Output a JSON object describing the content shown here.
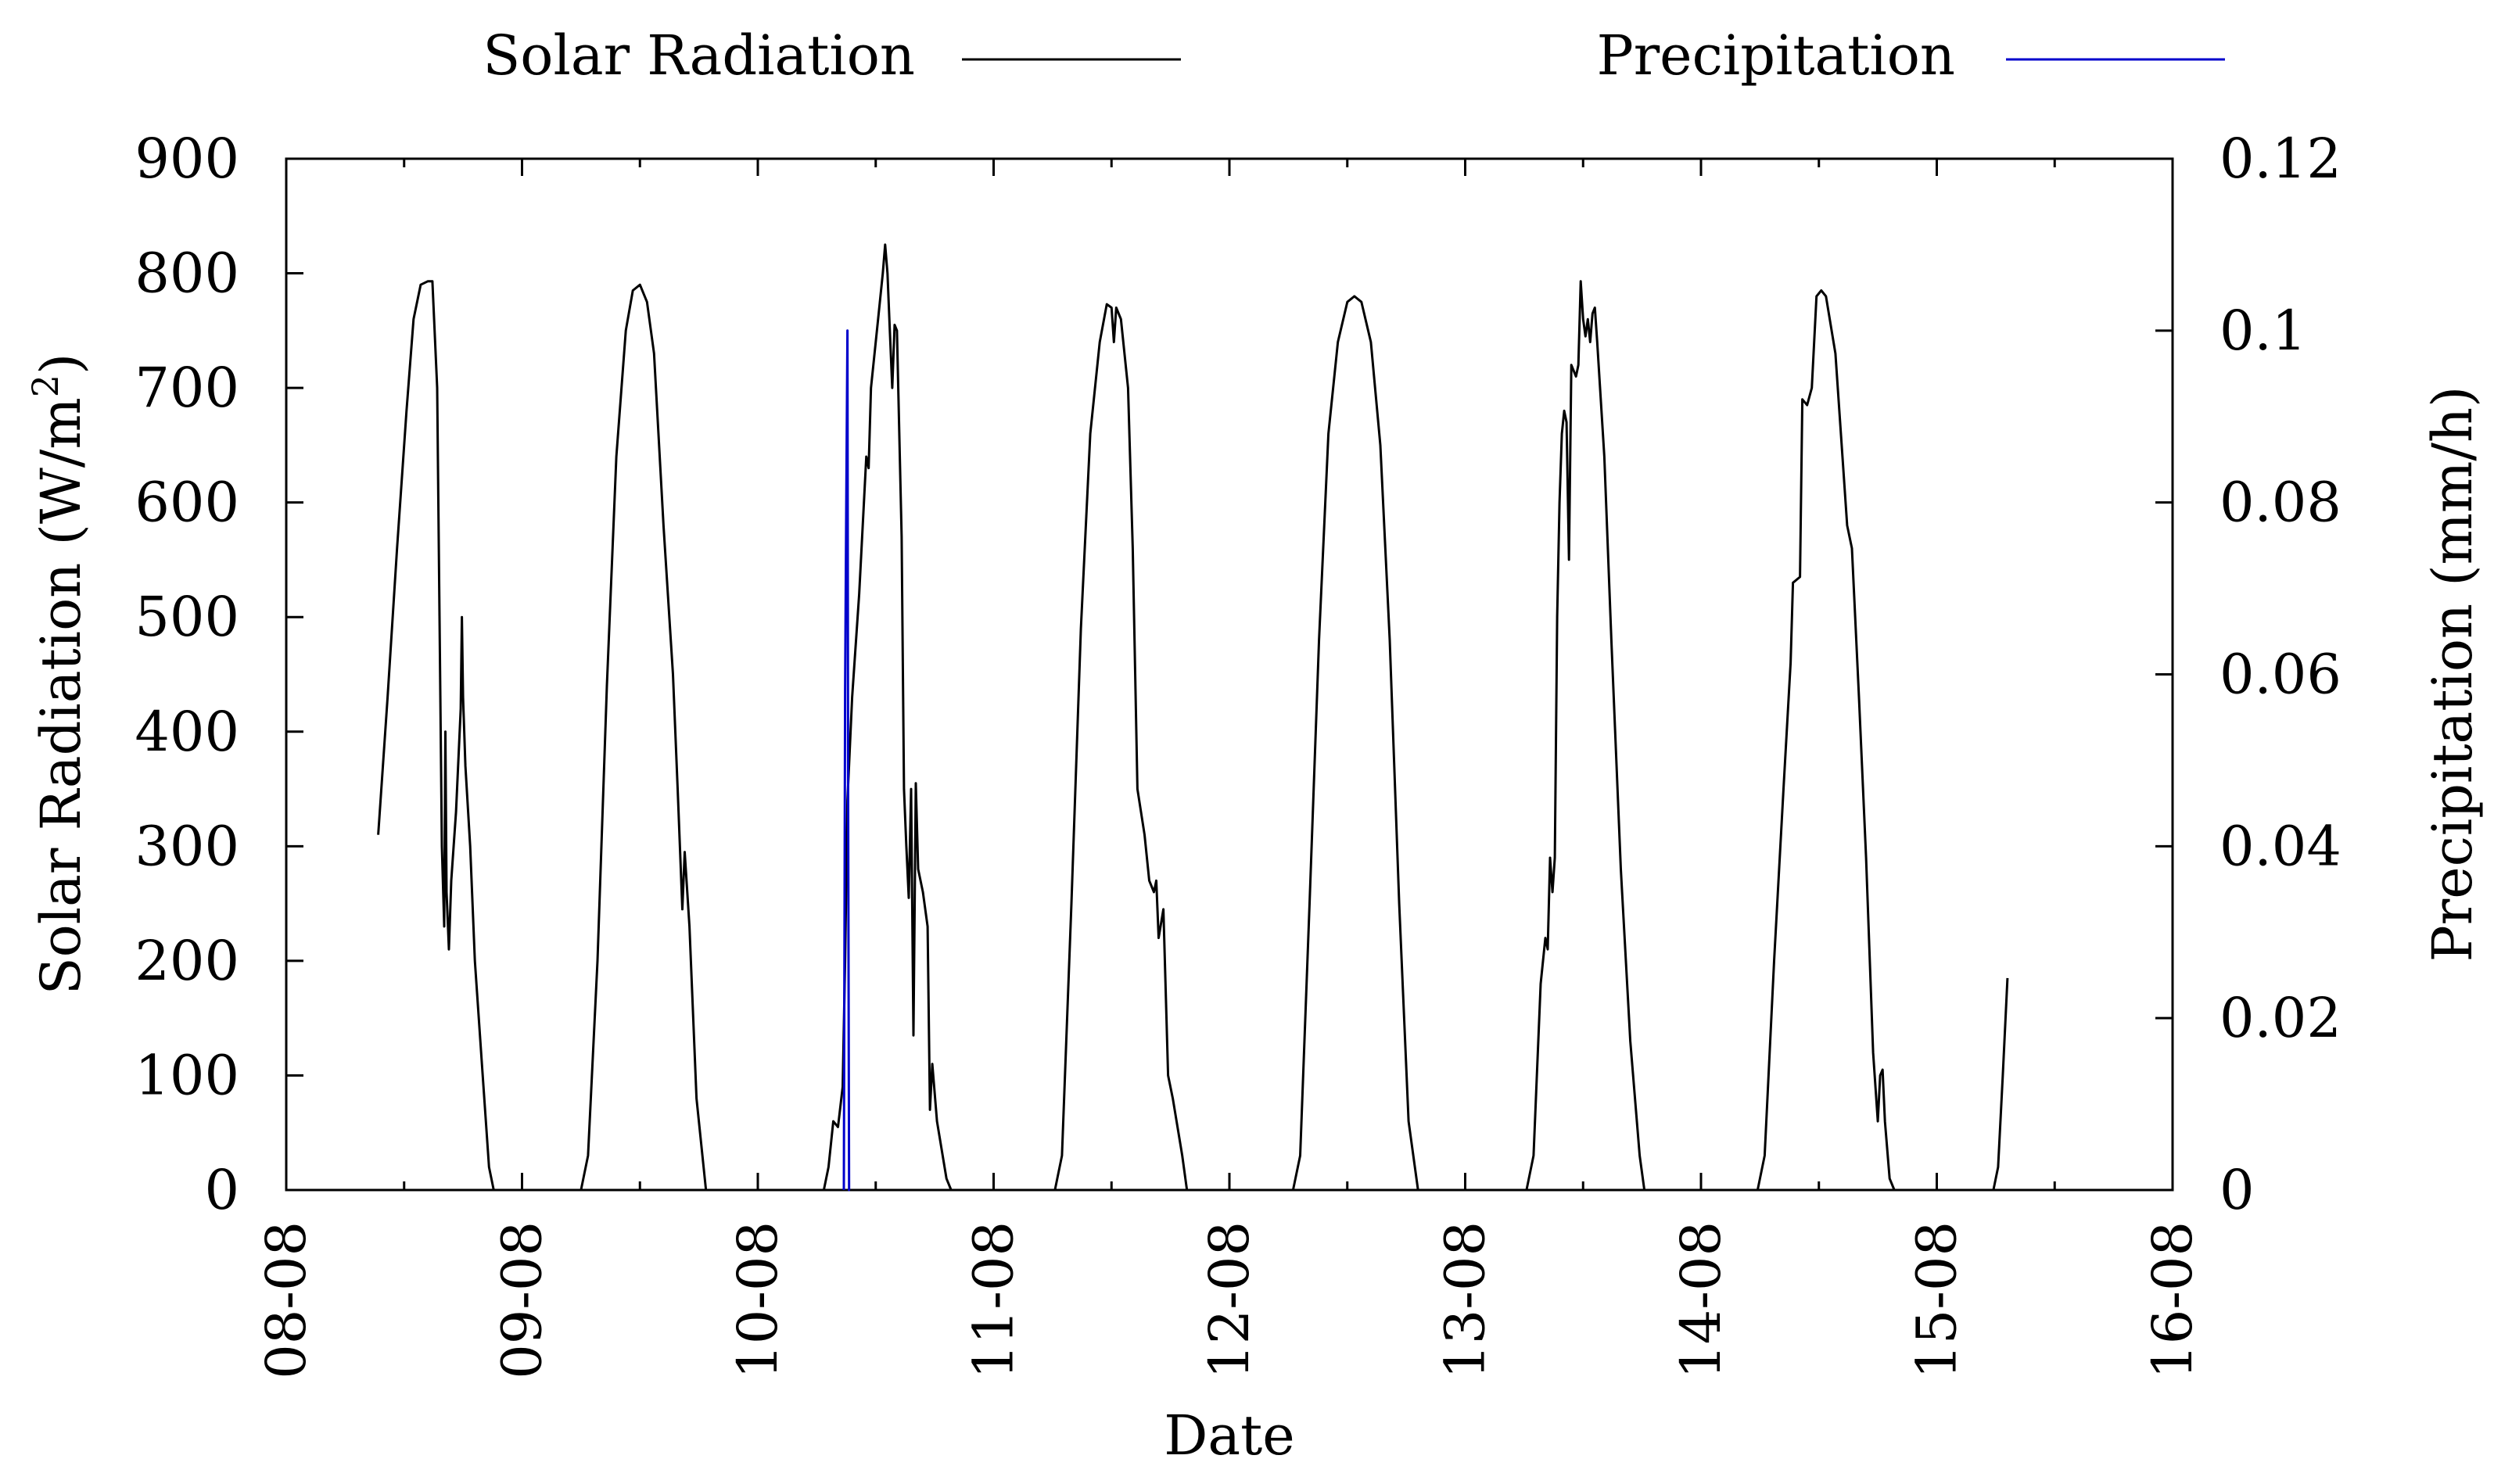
{
  "chart_data": {
    "type": "line",
    "xlabel": "Date",
    "ylabel_left": "Solar Radiation (W/m²)",
    "ylabel_left_main": "Solar Radiation (W/m",
    "ylabel_left_sup": "2",
    "ylabel_left_end": ")",
    "ylabel_right": "Precipitation (mm/h)",
    "x_range": [
      0,
      8
    ],
    "x_ticks": [
      0,
      1,
      2,
      3,
      4,
      5,
      6,
      7,
      8
    ],
    "x_tick_labels": [
      "08-08",
      "09-08",
      "10-08",
      "11-08",
      "12-08",
      "13-08",
      "14-08",
      "15-08",
      "16-08"
    ],
    "y_left_range": [
      0,
      900
    ],
    "y_left_ticks": [
      0,
      100,
      200,
      300,
      400,
      500,
      600,
      700,
      800,
      900
    ],
    "y_left_tick_labels": [
      "0",
      "100",
      "200",
      "300",
      "400",
      "500",
      "600",
      "700",
      "800",
      "900"
    ],
    "y_right_range": [
      0,
      0.12
    ],
    "y_right_ticks": [
      0,
      0.02,
      0.04,
      0.06,
      0.08,
      0.1,
      0.12
    ],
    "y_right_tick_labels": [
      "0",
      "0.02",
      "0.04",
      "0.06",
      "0.08",
      "0.1",
      "0.12"
    ],
    "grid": false,
    "legend_position": "top",
    "series": [
      {
        "name": "Solar Radiation",
        "axis": "left",
        "color": "#000000",
        "points": [
          [
            0.39,
            310
          ],
          [
            0.43,
            430
          ],
          [
            0.47,
            560
          ],
          [
            0.51,
            680
          ],
          [
            0.54,
            760
          ],
          [
            0.57,
            790
          ],
          [
            0.6,
            793
          ],
          [
            0.62,
            793
          ],
          [
            0.64,
            700
          ],
          [
            0.65,
            500
          ],
          [
            0.66,
            300
          ],
          [
            0.67,
            230
          ],
          [
            0.675,
            400
          ],
          [
            0.68,
            260
          ],
          [
            0.69,
            210
          ],
          [
            0.7,
            270
          ],
          [
            0.72,
            330
          ],
          [
            0.74,
            420
          ],
          [
            0.745,
            500
          ],
          [
            0.75,
            430
          ],
          [
            0.76,
            370
          ],
          [
            0.78,
            300
          ],
          [
            0.8,
            200
          ],
          [
            0.83,
            110
          ],
          [
            0.86,
            20
          ],
          [
            0.88,
            0
          ],
          [
            1.25,
            0
          ],
          [
            1.28,
            30
          ],
          [
            1.32,
            200
          ],
          [
            1.36,
            440
          ],
          [
            1.4,
            640
          ],
          [
            1.44,
            750
          ],
          [
            1.47,
            785
          ],
          [
            1.5,
            790
          ],
          [
            1.53,
            775
          ],
          [
            1.56,
            730
          ],
          [
            1.6,
            580
          ],
          [
            1.64,
            450
          ],
          [
            1.66,
            350
          ],
          [
            1.68,
            245
          ],
          [
            1.69,
            295
          ],
          [
            1.71,
            230
          ],
          [
            1.74,
            80
          ],
          [
            1.78,
            0
          ],
          [
            2.28,
            0
          ],
          [
            2.3,
            20
          ],
          [
            2.32,
            60
          ],
          [
            2.34,
            55
          ],
          [
            2.36,
            90
          ],
          [
            2.37,
            200
          ],
          [
            2.38,
            340
          ],
          [
            2.4,
            430
          ],
          [
            2.43,
            520
          ],
          [
            2.46,
            640
          ],
          [
            2.47,
            630
          ],
          [
            2.48,
            700
          ],
          [
            2.51,
            760
          ],
          [
            2.53,
            800
          ],
          [
            2.54,
            825
          ],
          [
            2.55,
            800
          ],
          [
            2.56,
            750
          ],
          [
            2.57,
            700
          ],
          [
            2.58,
            755
          ],
          [
            2.59,
            750
          ],
          [
            2.61,
            570
          ],
          [
            2.62,
            350
          ],
          [
            2.63,
            300
          ],
          [
            2.64,
            255
          ],
          [
            2.65,
            350
          ],
          [
            2.66,
            135
          ],
          [
            2.67,
            355
          ],
          [
            2.68,
            280
          ],
          [
            2.7,
            260
          ],
          [
            2.72,
            230
          ],
          [
            2.73,
            70
          ],
          [
            2.74,
            110
          ],
          [
            2.76,
            60
          ],
          [
            2.8,
            10
          ],
          [
            2.82,
            0
          ],
          [
            3.26,
            0
          ],
          [
            3.29,
            30
          ],
          [
            3.33,
            250
          ],
          [
            3.37,
            490
          ],
          [
            3.41,
            660
          ],
          [
            3.45,
            740
          ],
          [
            3.48,
            773
          ],
          [
            3.5,
            770
          ],
          [
            3.51,
            740
          ],
          [
            3.52,
            770
          ],
          [
            3.54,
            760
          ],
          [
            3.57,
            700
          ],
          [
            3.59,
            560
          ],
          [
            3.61,
            350
          ],
          [
            3.64,
            310
          ],
          [
            3.66,
            270
          ],
          [
            3.68,
            260
          ],
          [
            3.69,
            270
          ],
          [
            3.7,
            220
          ],
          [
            3.72,
            245
          ],
          [
            3.74,
            100
          ],
          [
            3.76,
            80
          ],
          [
            3.8,
            30
          ],
          [
            3.82,
            0
          ],
          [
            4.27,
            0
          ],
          [
            4.3,
            30
          ],
          [
            4.34,
            250
          ],
          [
            4.38,
            480
          ],
          [
            4.42,
            660
          ],
          [
            4.46,
            740
          ],
          [
            4.5,
            775
          ],
          [
            4.53,
            780
          ],
          [
            4.56,
            775
          ],
          [
            4.6,
            740
          ],
          [
            4.64,
            650
          ],
          [
            4.68,
            480
          ],
          [
            4.72,
            250
          ],
          [
            4.76,
            60
          ],
          [
            4.8,
            0
          ],
          [
            5.26,
            0
          ],
          [
            5.29,
            30
          ],
          [
            5.32,
            180
          ],
          [
            5.34,
            220
          ],
          [
            5.35,
            210
          ],
          [
            5.36,
            290
          ],
          [
            5.37,
            260
          ],
          [
            5.38,
            290
          ],
          [
            5.39,
            500
          ],
          [
            5.4,
            600
          ],
          [
            5.41,
            660
          ],
          [
            5.42,
            680
          ],
          [
            5.43,
            670
          ],
          [
            5.44,
            550
          ],
          [
            5.45,
            720
          ],
          [
            5.47,
            710
          ],
          [
            5.48,
            720
          ],
          [
            5.49,
            793
          ],
          [
            5.5,
            760
          ],
          [
            5.51,
            745
          ],
          [
            5.52,
            760
          ],
          [
            5.53,
            740
          ],
          [
            5.54,
            765
          ],
          [
            5.55,
            770
          ],
          [
            5.56,
            740
          ],
          [
            5.59,
            640
          ],
          [
            5.62,
            480
          ],
          [
            5.66,
            280
          ],
          [
            5.7,
            130
          ],
          [
            5.74,
            30
          ],
          [
            5.76,
            0
          ],
          [
            6.24,
            0
          ],
          [
            6.27,
            30
          ],
          [
            6.31,
            200
          ],
          [
            6.35,
            350
          ],
          [
            6.38,
            460
          ],
          [
            6.39,
            530
          ],
          [
            6.42,
            535
          ],
          [
            6.43,
            690
          ],
          [
            6.45,
            685
          ],
          [
            6.47,
            700
          ],
          [
            6.49,
            780
          ],
          [
            6.51,
            785
          ],
          [
            6.53,
            780
          ],
          [
            6.57,
            730
          ],
          [
            6.6,
            640
          ],
          [
            6.62,
            580
          ],
          [
            6.64,
            560
          ],
          [
            6.67,
            430
          ],
          [
            6.7,
            290
          ],
          [
            6.73,
            120
          ],
          [
            6.75,
            60
          ],
          [
            6.76,
            100
          ],
          [
            6.77,
            105
          ],
          [
            6.78,
            60
          ],
          [
            6.8,
            10
          ],
          [
            6.82,
            0
          ],
          [
            7.24,
            0
          ],
          [
            7.26,
            20
          ],
          [
            7.28,
            100
          ],
          [
            7.3,
            185
          ]
        ]
      },
      {
        "name": "Precipitation",
        "axis": "right",
        "color": "#0000cc",
        "points": [
          [
            2.365,
            0
          ],
          [
            2.37,
            0.058
          ],
          [
            2.375,
            0.08
          ],
          [
            2.38,
            0.1
          ],
          [
            2.383,
            0.045
          ],
          [
            2.387,
            0
          ],
          [
            2.39,
            0
          ]
        ]
      }
    ]
  }
}
